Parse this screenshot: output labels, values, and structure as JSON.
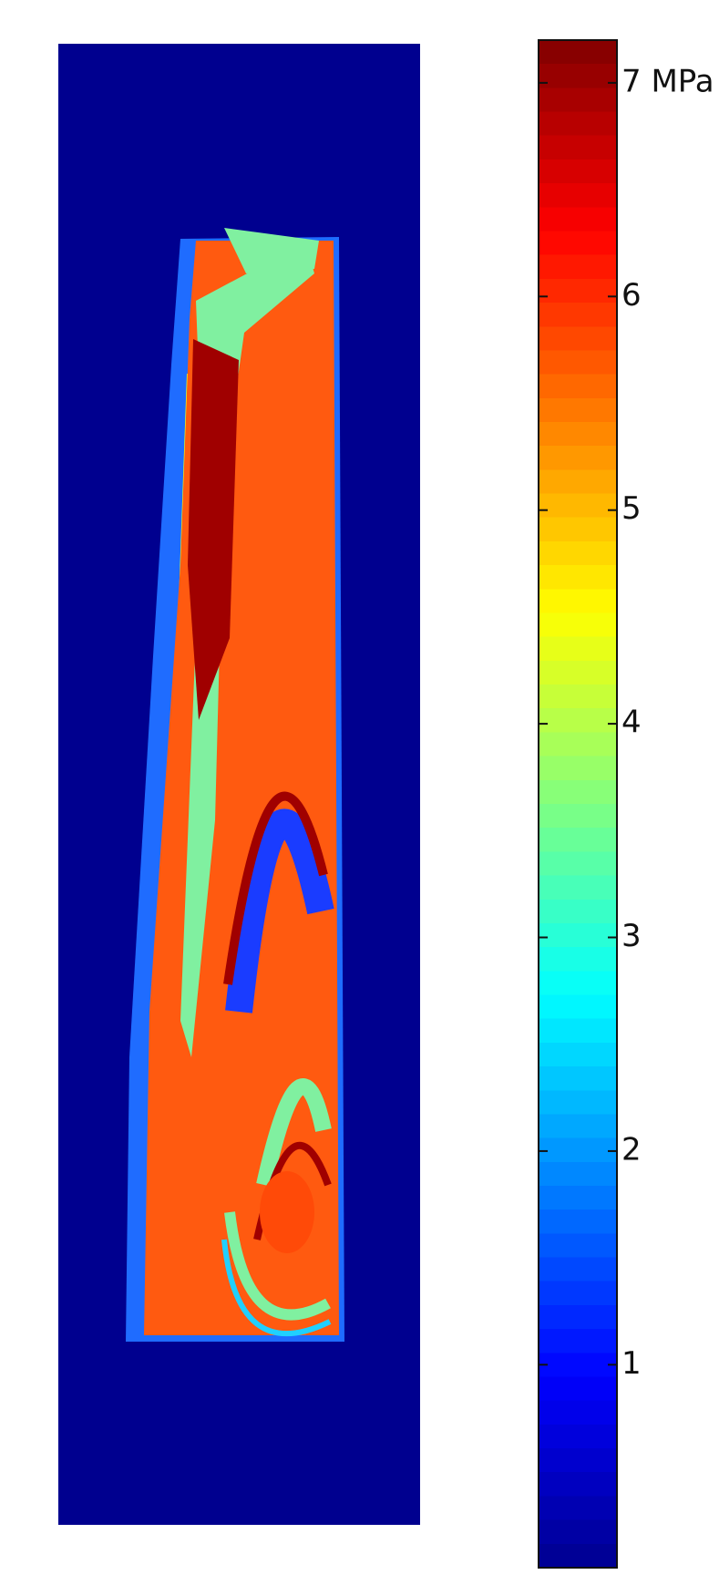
{
  "chart_data": {
    "type": "colormap",
    "colorbar": {
      "colormap": "jet",
      "clim": [
        0.05,
        7.2
      ],
      "ticks": [
        1,
        2,
        3,
        4,
        5,
        6,
        {
          "value": 7,
          "label": "7 MPa"
        }
      ]
    }
  }
}
